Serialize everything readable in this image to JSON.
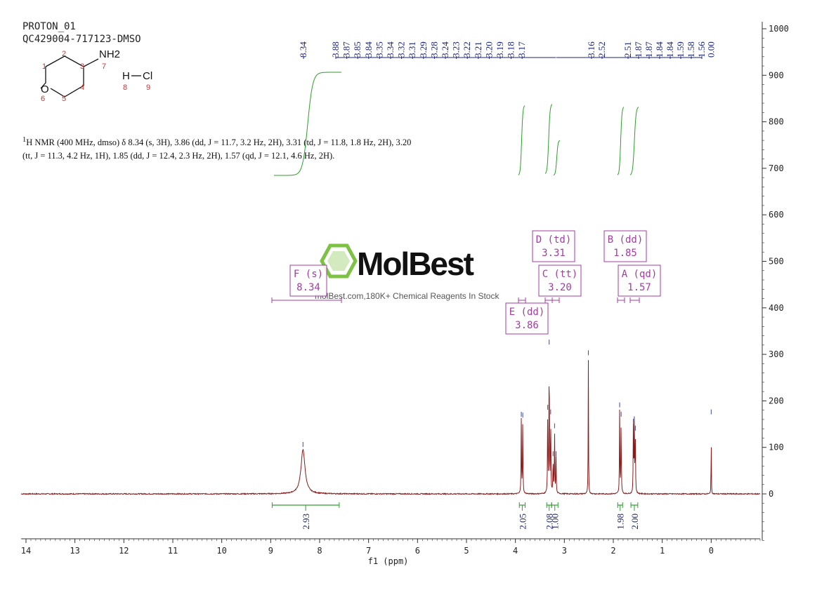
{
  "header": {
    "experiment": "PROTON_01",
    "sample": "QC429004-717123-DMSO"
  },
  "structure": {
    "atom_labels": [
      "1",
      "2",
      "3",
      "4",
      "5",
      "6",
      "7",
      "8",
      "9"
    ],
    "groups": {
      "amine": "NH2",
      "oxygen": "O",
      "hcl_h": "H",
      "hcl_cl": "Cl"
    }
  },
  "summary": {
    "sup": "1",
    "text": "H NMR (400 MHz, dmso) δ 8.34 (s, 3H), 3.86 (dd, J = 11.7, 3.2 Hz, 2H), 3.31 (td, J = 11.8, 1.8 Hz, 2H), 3.20 (tt, J = 11.3, 4.2 Hz, 1H), 1.85 (dd, J = 12.4, 2.3 Hz, 2H), 1.57 (qd, J = 12.1, 4.6 Hz, 2H)."
  },
  "watermark": {
    "brand": "MolBest",
    "tagline": "molBest.com,180K+ Chemical Reagents In Stock"
  },
  "colors": {
    "spectrum": "#8b1a1a",
    "integral": "#2e9e2e",
    "peak_label": "#1a237e",
    "multiplet": "#a23da2",
    "logo": "#7dc242"
  },
  "chart_data": {
    "type": "line",
    "xlabel": "f1 (ppm)",
    "x_ticks": [
      14,
      13,
      12,
      11,
      10,
      9,
      8,
      7,
      6,
      5,
      4,
      3,
      2,
      1,
      0
    ],
    "xlim": [
      14.1,
      -1.0
    ],
    "x_reversed": true,
    "y_ticks": [
      1000,
      900,
      800,
      700,
      600,
      500,
      400,
      300,
      200,
      100,
      0
    ],
    "ylim": [
      -100,
      1000
    ],
    "y_axis_side": "right",
    "peaks": [
      {
        "shift": 8.34,
        "height": 95,
        "width": 0.05
      },
      {
        "shift": 3.88,
        "height": 160,
        "width": 0.005
      },
      {
        "shift": 3.85,
        "height": 158,
        "width": 0.005
      },
      {
        "shift": 3.34,
        "height": 175,
        "width": 0.005
      },
      {
        "shift": 3.31,
        "height": 315,
        "width": 0.005
      },
      {
        "shift": 3.28,
        "height": 165,
        "width": 0.005
      },
      {
        "shift": 3.23,
        "height": 75,
        "width": 0.005
      },
      {
        "shift": 3.2,
        "height": 135,
        "width": 0.005
      },
      {
        "shift": 3.17,
        "height": 75,
        "width": 0.005
      },
      {
        "shift": 2.51,
        "height": 292,
        "width": 0.004
      },
      {
        "shift": 1.87,
        "height": 180,
        "width": 0.005
      },
      {
        "shift": 1.84,
        "height": 160,
        "width": 0.005
      },
      {
        "shift": 1.59,
        "height": 145,
        "width": 0.005
      },
      {
        "shift": 1.57,
        "height": 150,
        "width": 0.005
      },
      {
        "shift": 1.55,
        "height": 130,
        "width": 0.005
      },
      {
        "shift": 0.0,
        "height": 165,
        "width": 0.003
      }
    ],
    "peak_labels": [
      {
        "label": "8.34",
        "shift": 8.34
      },
      {
        "label": "3.88",
        "shift": 3.88
      },
      {
        "label": "3.87",
        "shift": 3.87
      },
      {
        "label": "3.85",
        "shift": 3.85
      },
      {
        "label": "3.84",
        "shift": 3.84
      },
      {
        "label": "3.35",
        "shift": 3.35
      },
      {
        "label": "3.34",
        "shift": 3.34
      },
      {
        "label": "3.32",
        "shift": 3.32
      },
      {
        "label": "3.31",
        "shift": 3.31
      },
      {
        "label": "3.29",
        "shift": 3.29
      },
      {
        "label": "3.28",
        "shift": 3.28
      },
      {
        "label": "3.24",
        "shift": 3.24
      },
      {
        "label": "3.23",
        "shift": 3.23
      },
      {
        "label": "3.22",
        "shift": 3.22
      },
      {
        "label": "3.21",
        "shift": 3.21
      },
      {
        "label": "3.20",
        "shift": 3.2
      },
      {
        "label": "3.19",
        "shift": 3.19
      },
      {
        "label": "3.18",
        "shift": 3.18
      },
      {
        "label": "3.17",
        "shift": 3.17
      },
      {
        "label": "3.16",
        "shift": 3.16
      },
      {
        "label": "2.52",
        "shift": 2.52
      },
      {
        "label": "2.51",
        "shift": 2.51
      },
      {
        "label": "1.87",
        "shift": 1.87
      },
      {
        "label": "1.87",
        "shift": 1.87
      },
      {
        "label": "1.84",
        "shift": 1.84
      },
      {
        "label": "1.84",
        "shift": 1.84
      },
      {
        "label": "1.59",
        "shift": 1.59
      },
      {
        "label": "1.58",
        "shift": 1.58
      },
      {
        "label": "1.56",
        "shift": 1.56
      },
      {
        "label": "0.00",
        "shift": 0.0
      }
    ],
    "integrals": [
      {
        "from": 8.97,
        "to": 7.6,
        "value": "2.93"
      },
      {
        "from": 3.92,
        "to": 3.8,
        "value": "2.05"
      },
      {
        "from": 3.36,
        "to": 3.26,
        "value": "2.08"
      },
      {
        "from": 3.26,
        "to": 3.13,
        "value": "1.00"
      },
      {
        "from": 1.91,
        "to": 1.81,
        "value": "1.98"
      },
      {
        "from": 1.64,
        "to": 1.5,
        "value": "2.00"
      }
    ],
    "multiplets": [
      {
        "id": "F",
        "type": "s",
        "shift": "8.34"
      },
      {
        "id": "D",
        "type": "td",
        "shift": "3.31"
      },
      {
        "id": "C",
        "type": "tt",
        "shift": "3.20"
      },
      {
        "id": "E",
        "type": "dd",
        "shift": "3.86"
      },
      {
        "id": "B",
        "type": "dd",
        "shift": "1.85"
      },
      {
        "id": "A",
        "type": "qd",
        "shift": "1.57"
      }
    ]
  }
}
